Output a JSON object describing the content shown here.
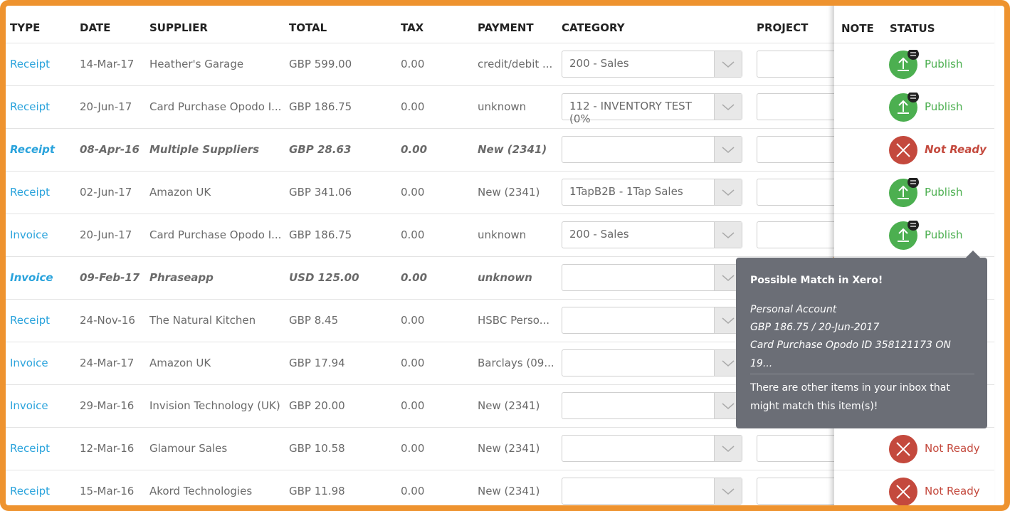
{
  "table": {
    "headers": [
      "TYPE",
      "DATE",
      "SUPPLIER",
      "TOTAL",
      "TAX",
      "PAYMENT",
      "CATEGORY",
      "PROJECT"
    ],
    "rows": [
      [
        "Receipt",
        "14-Mar-17",
        "Heather's Garage",
        "GBP 599.00",
        "0.00",
        "credit/debit ...",
        "200 - Sales"
      ],
      [
        "Receipt",
        "20-Jun-17",
        "Card Purchase Opodo I...",
        "GBP 186.75",
        "0.00",
        "unknown",
        "112 - INVENTORY TEST (0%"
      ],
      [
        "Receipt",
        "08-Apr-16",
        "Multiple Suppliers",
        "GBP 28.63",
        "0.00",
        "New (2341)",
        null
      ],
      [
        "Receipt",
        "02-Jun-17",
        "Amazon UK",
        "GBP 341.06",
        "0.00",
        "New (2341)",
        "1TapB2B - 1Tap Sales"
      ],
      [
        "Invoice",
        "20-Jun-17",
        "Card Purchase Opodo I...",
        "GBP 186.75",
        "0.00",
        "unknown",
        "200 - Sales"
      ],
      [
        "Invoice",
        "09-Feb-17",
        "Phraseapp",
        "USD 125.00",
        "0.00",
        "unknown",
        null
      ],
      [
        "Receipt",
        "24-Nov-16",
        "The Natural Kitchen",
        "GBP 8.45",
        "0.00",
        "HSBC Perso...",
        null
      ],
      [
        "Invoice",
        "24-Mar-17",
        "Amazon UK",
        "GBP 17.94",
        "0.00",
        "Barclays (09...",
        null
      ],
      [
        "Invoice",
        "29-Mar-16",
        "Invision Technology (UK)",
        "GBP 20.00",
        "0.00",
        "New (2341)",
        null
      ],
      [
        "Receipt",
        "12-Mar-16",
        "Glamour Sales",
        "GBP 10.58",
        "0.00",
        "New (2341)",
        null
      ],
      [
        "Receipt",
        "15-Mar-16",
        "Akord Technologies",
        "GBP 11.98",
        "0.00",
        "New (2341)",
        null
      ]
    ]
  },
  "status_panel": {
    "headers": [
      "NOTE",
      "STATUS"
    ],
    "statuses": [
      "Publish",
      "Publish",
      "Not Ready",
      "Publish",
      "Publish",
      null,
      null,
      null,
      null,
      "Not Ready",
      "Not Ready"
    ]
  },
  "tooltip": {
    "title": "Possible Match in Xero!",
    "details": [
      "Personal Account",
      "GBP 186.75 / 20-Jun-2017",
      "Card Purchase Opodo ID 358121173 ON 19..."
    ],
    "message": "There are other items in your inbox that might match this item(s)!"
  }
}
